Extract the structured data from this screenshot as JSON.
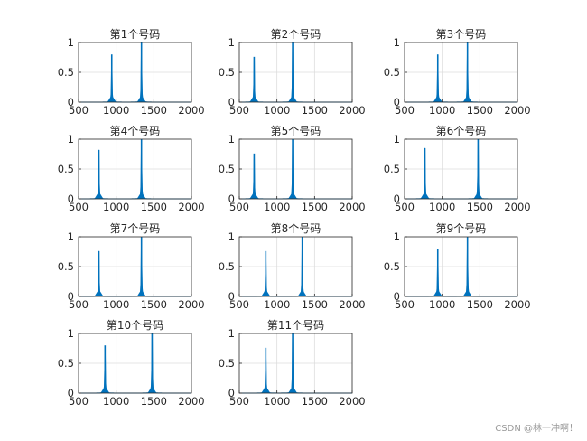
{
  "watermark": "CSDN @林一冲啊！",
  "chart_data": [
    {
      "type": "line",
      "title": "第1个号码",
      "xlim": [
        500,
        2000
      ],
      "ylim": [
        0,
        1
      ],
      "xticks": [
        500,
        1000,
        1500,
        2000
      ],
      "yticks": [
        0,
        0.5,
        1
      ],
      "grid": true,
      "x": [
        941,
        1336
      ],
      "values": [
        0.8,
        1.0
      ]
    },
    {
      "type": "line",
      "title": "第2个号码",
      "xlim": [
        500,
        2000
      ],
      "ylim": [
        0,
        1
      ],
      "xticks": [
        500,
        1000,
        1500,
        2000
      ],
      "yticks": [
        0,
        0.5,
        1
      ],
      "grid": true,
      "x": [
        697,
        1209
      ],
      "values": [
        0.76,
        1.0
      ]
    },
    {
      "type": "line",
      "title": "第3个号码",
      "xlim": [
        500,
        2000
      ],
      "ylim": [
        0,
        1
      ],
      "xticks": [
        500,
        1000,
        1500,
        2000
      ],
      "yticks": [
        0,
        0.5,
        1
      ],
      "grid": true,
      "x": [
        941,
        1336
      ],
      "values": [
        0.8,
        1.0
      ]
    },
    {
      "type": "line",
      "title": "第4个号码",
      "xlim": [
        500,
        2000
      ],
      "ylim": [
        0,
        1
      ],
      "xticks": [
        500,
        1000,
        1500,
        2000
      ],
      "yticks": [
        0,
        0.5,
        1
      ],
      "grid": true,
      "x": [
        770,
        1336
      ],
      "values": [
        0.82,
        1.0
      ]
    },
    {
      "type": "line",
      "title": "第5个号码",
      "xlim": [
        500,
        2000
      ],
      "ylim": [
        0,
        1
      ],
      "xticks": [
        500,
        1000,
        1500,
        2000
      ],
      "yticks": [
        0,
        0.5,
        1
      ],
      "grid": true,
      "x": [
        697,
        1209
      ],
      "values": [
        0.76,
        1.0
      ]
    },
    {
      "type": "line",
      "title": "第6个号码",
      "xlim": [
        500,
        2000
      ],
      "ylim": [
        0,
        1
      ],
      "xticks": [
        500,
        1000,
        1500,
        2000
      ],
      "yticks": [
        0,
        0.5,
        1
      ],
      "grid": true,
      "x": [
        770,
        1477
      ],
      "values": [
        0.85,
        1.0
      ]
    },
    {
      "type": "line",
      "title": "第7个号码",
      "xlim": [
        500,
        2000
      ],
      "ylim": [
        0,
        1
      ],
      "xticks": [
        500,
        1000,
        1500,
        2000
      ],
      "yticks": [
        0,
        0.5,
        1
      ],
      "grid": true,
      "x": [
        770,
        1336
      ],
      "values": [
        0.76,
        1.0
      ]
    },
    {
      "type": "line",
      "title": "第8个号码",
      "xlim": [
        500,
        2000
      ],
      "ylim": [
        0,
        1
      ],
      "xticks": [
        500,
        1000,
        1500,
        2000
      ],
      "yticks": [
        0,
        0.5,
        1
      ],
      "grid": true,
      "x": [
        852,
        1336
      ],
      "values": [
        0.76,
        1.0
      ]
    },
    {
      "type": "line",
      "title": "第9个号码",
      "xlim": [
        500,
        2000
      ],
      "ylim": [
        0,
        1
      ],
      "xticks": [
        500,
        1000,
        1500,
        2000
      ],
      "yticks": [
        0,
        0.5,
        1
      ],
      "grid": true,
      "x": [
        941,
        1336
      ],
      "values": [
        0.8,
        1.0
      ]
    },
    {
      "type": "line",
      "title": "第10个号码",
      "xlim": [
        500,
        2000
      ],
      "ylim": [
        0,
        1
      ],
      "xticks": [
        500,
        1000,
        1500,
        2000
      ],
      "yticks": [
        0,
        0.5,
        1
      ],
      "grid": true,
      "x": [
        852,
        1477
      ],
      "values": [
        0.8,
        1.0
      ]
    },
    {
      "type": "line",
      "title": "第11个号码",
      "xlim": [
        500,
        2000
      ],
      "ylim": [
        0,
        1
      ],
      "xticks": [
        500,
        1000,
        1500,
        2000
      ],
      "yticks": [
        0,
        0.5,
        1
      ],
      "grid": true,
      "x": [
        852,
        1209
      ],
      "values": [
        0.76,
        1.0
      ]
    }
  ],
  "colors": {
    "line": "#0072BD",
    "grid": "#dcdcdc",
    "axis": "#262626"
  }
}
